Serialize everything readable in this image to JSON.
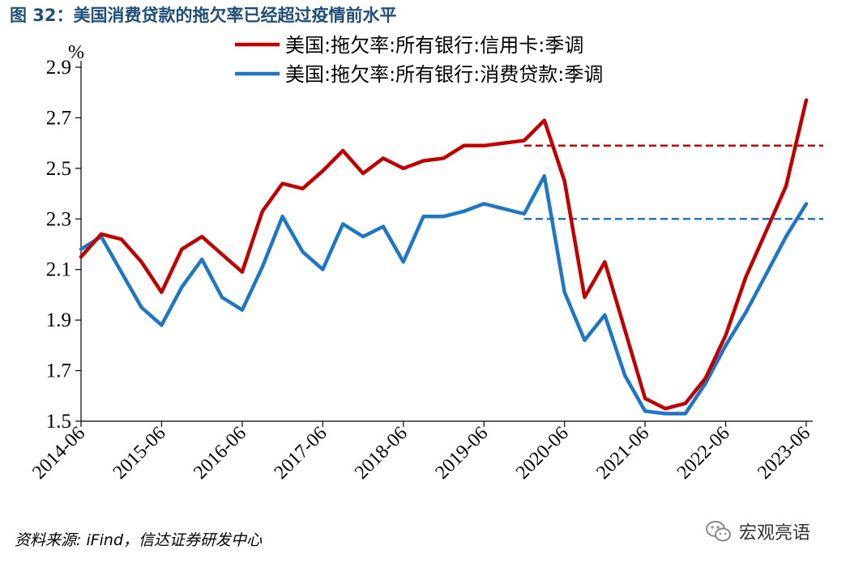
{
  "title": "图 32：美国消费贷款的拖欠率已经超过疫情前水平",
  "footer": "资料来源: iFind，信达证券研发中心",
  "watermark": {
    "text": "宏观亮语",
    "icon": "wechat-icon"
  },
  "chart_data": {
    "type": "line",
    "unit": "%",
    "ylim": [
      1.5,
      2.9
    ],
    "yticks": [
      "1.5",
      "1.7",
      "1.9",
      "2.1",
      "2.3",
      "2.5",
      "2.7",
      "2.9"
    ],
    "xticks": [
      "2014-06",
      "2015-06",
      "2016-06",
      "2017-06",
      "2018-06",
      "2019-06",
      "2020-06",
      "2021-06",
      "2022-06",
      "2023-06"
    ],
    "x": [
      "2014-06",
      "2014-09",
      "2014-12",
      "2015-03",
      "2015-06",
      "2015-09",
      "2015-12",
      "2016-03",
      "2016-06",
      "2016-09",
      "2016-12",
      "2017-03",
      "2017-06",
      "2017-09",
      "2017-12",
      "2018-03",
      "2018-06",
      "2018-09",
      "2018-12",
      "2019-03",
      "2019-06",
      "2019-09",
      "2019-12",
      "2020-03",
      "2020-06",
      "2020-09",
      "2020-12",
      "2021-03",
      "2021-06",
      "2021-09",
      "2021-12",
      "2022-03",
      "2022-06",
      "2022-09",
      "2022-12",
      "2023-03",
      "2023-06"
    ],
    "series": [
      {
        "name": "美国:拖欠率:所有银行:信用卡:季调",
        "color": "#c00000",
        "values": [
          2.15,
          2.24,
          2.22,
          2.13,
          2.01,
          2.18,
          2.23,
          2.16,
          2.09,
          2.33,
          2.44,
          2.42,
          2.49,
          2.57,
          2.48,
          2.54,
          2.5,
          2.53,
          2.54,
          2.59,
          2.59,
          2.6,
          2.61,
          2.69,
          2.45,
          1.99,
          2.13,
          1.86,
          1.59,
          1.55,
          1.57,
          1.67,
          1.84,
          2.07,
          2.25,
          2.43,
          2.77
        ]
      },
      {
        "name": "美国:拖欠率:所有银行:消费贷款:季调",
        "color": "#1f77c4",
        "values": [
          2.18,
          2.23,
          2.09,
          1.95,
          1.88,
          2.03,
          2.14,
          1.99,
          1.94,
          2.11,
          2.31,
          2.17,
          2.1,
          2.28,
          2.23,
          2.27,
          2.13,
          2.31,
          2.31,
          2.33,
          2.36,
          2.34,
          2.32,
          2.47,
          2.01,
          1.82,
          1.92,
          1.68,
          1.54,
          1.53,
          1.53,
          1.65,
          1.8,
          1.93,
          2.08,
          2.23,
          2.36
        ]
      }
    ],
    "reference_lines": [
      {
        "value": 2.59,
        "color": "#c00000",
        "style": "dashed",
        "from": "2019-12"
      },
      {
        "value": 2.3,
        "color": "#1f77c4",
        "style": "dashed",
        "from": "2019-12"
      }
    ],
    "legend": "top"
  }
}
